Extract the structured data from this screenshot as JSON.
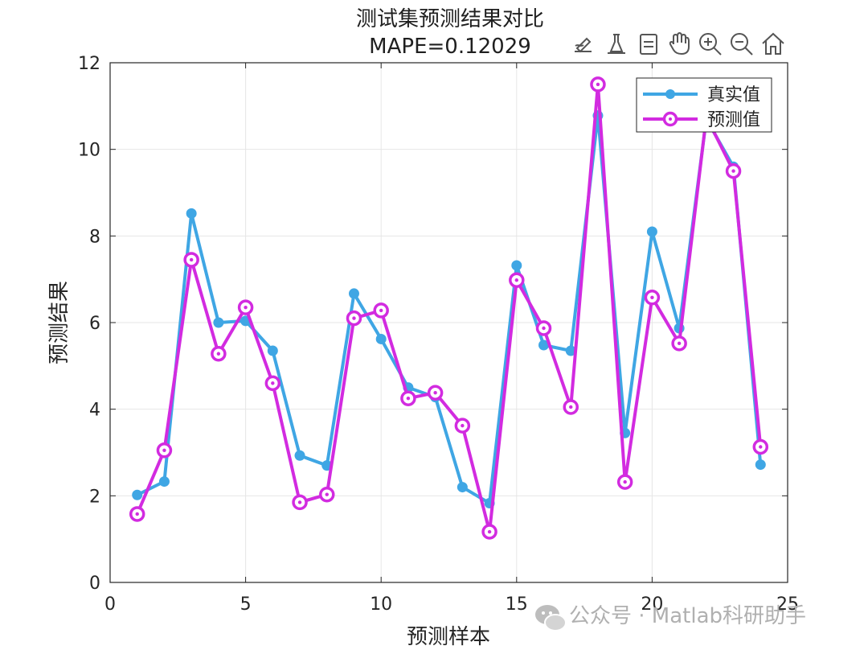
{
  "toolbar": {
    "icons": [
      "brush-edit-icon",
      "data-tips-icon",
      "data-cursor-icon",
      "pan-hand-icon",
      "zoom-in-icon",
      "zoom-out-icon",
      "home-icon"
    ]
  },
  "colors": {
    "true_series": "#3fa6e4",
    "pred_series": "#d22be0",
    "grid": "#e6e6e6",
    "axis": "#262626"
  },
  "watermark": {
    "icon": "wechat-icon",
    "text": "公众号 · Matlab科研助手"
  },
  "chart_data": {
    "type": "line",
    "title": "测试集预测结果对比",
    "subtitle": "MAPE=0.12029",
    "xlabel": "预测样本",
    "ylabel": "预测结果",
    "xlim": [
      0,
      25
    ],
    "ylim": [
      0,
      12
    ],
    "xticks": [
      0,
      5,
      10,
      15,
      20,
      25
    ],
    "yticks": [
      0,
      2,
      4,
      6,
      8,
      10,
      12
    ],
    "grid": true,
    "legend_position": "top-right",
    "x": [
      1,
      2,
      3,
      4,
      5,
      6,
      7,
      8,
      9,
      10,
      11,
      12,
      13,
      14,
      15,
      16,
      17,
      18,
      19,
      20,
      21,
      22,
      23,
      24
    ],
    "series": [
      {
        "name": "真实值",
        "marker": "filled-circle",
        "values": [
          2.02,
          2.33,
          8.52,
          6.0,
          6.04,
          5.35,
          2.93,
          2.7,
          6.67,
          5.62,
          4.5,
          4.28,
          2.2,
          1.83,
          7.32,
          5.48,
          5.35,
          10.78,
          3.45,
          8.1,
          5.87,
          10.7,
          9.6,
          2.72
        ]
      },
      {
        "name": "预测值",
        "marker": "open-circle",
        "values": [
          1.58,
          3.05,
          7.45,
          5.28,
          6.35,
          4.6,
          1.85,
          2.03,
          6.1,
          6.28,
          4.25,
          4.38,
          3.62,
          1.17,
          6.98,
          5.87,
          4.05,
          11.5,
          2.32,
          6.58,
          5.52,
          10.75,
          9.5,
          3.13
        ]
      }
    ]
  }
}
